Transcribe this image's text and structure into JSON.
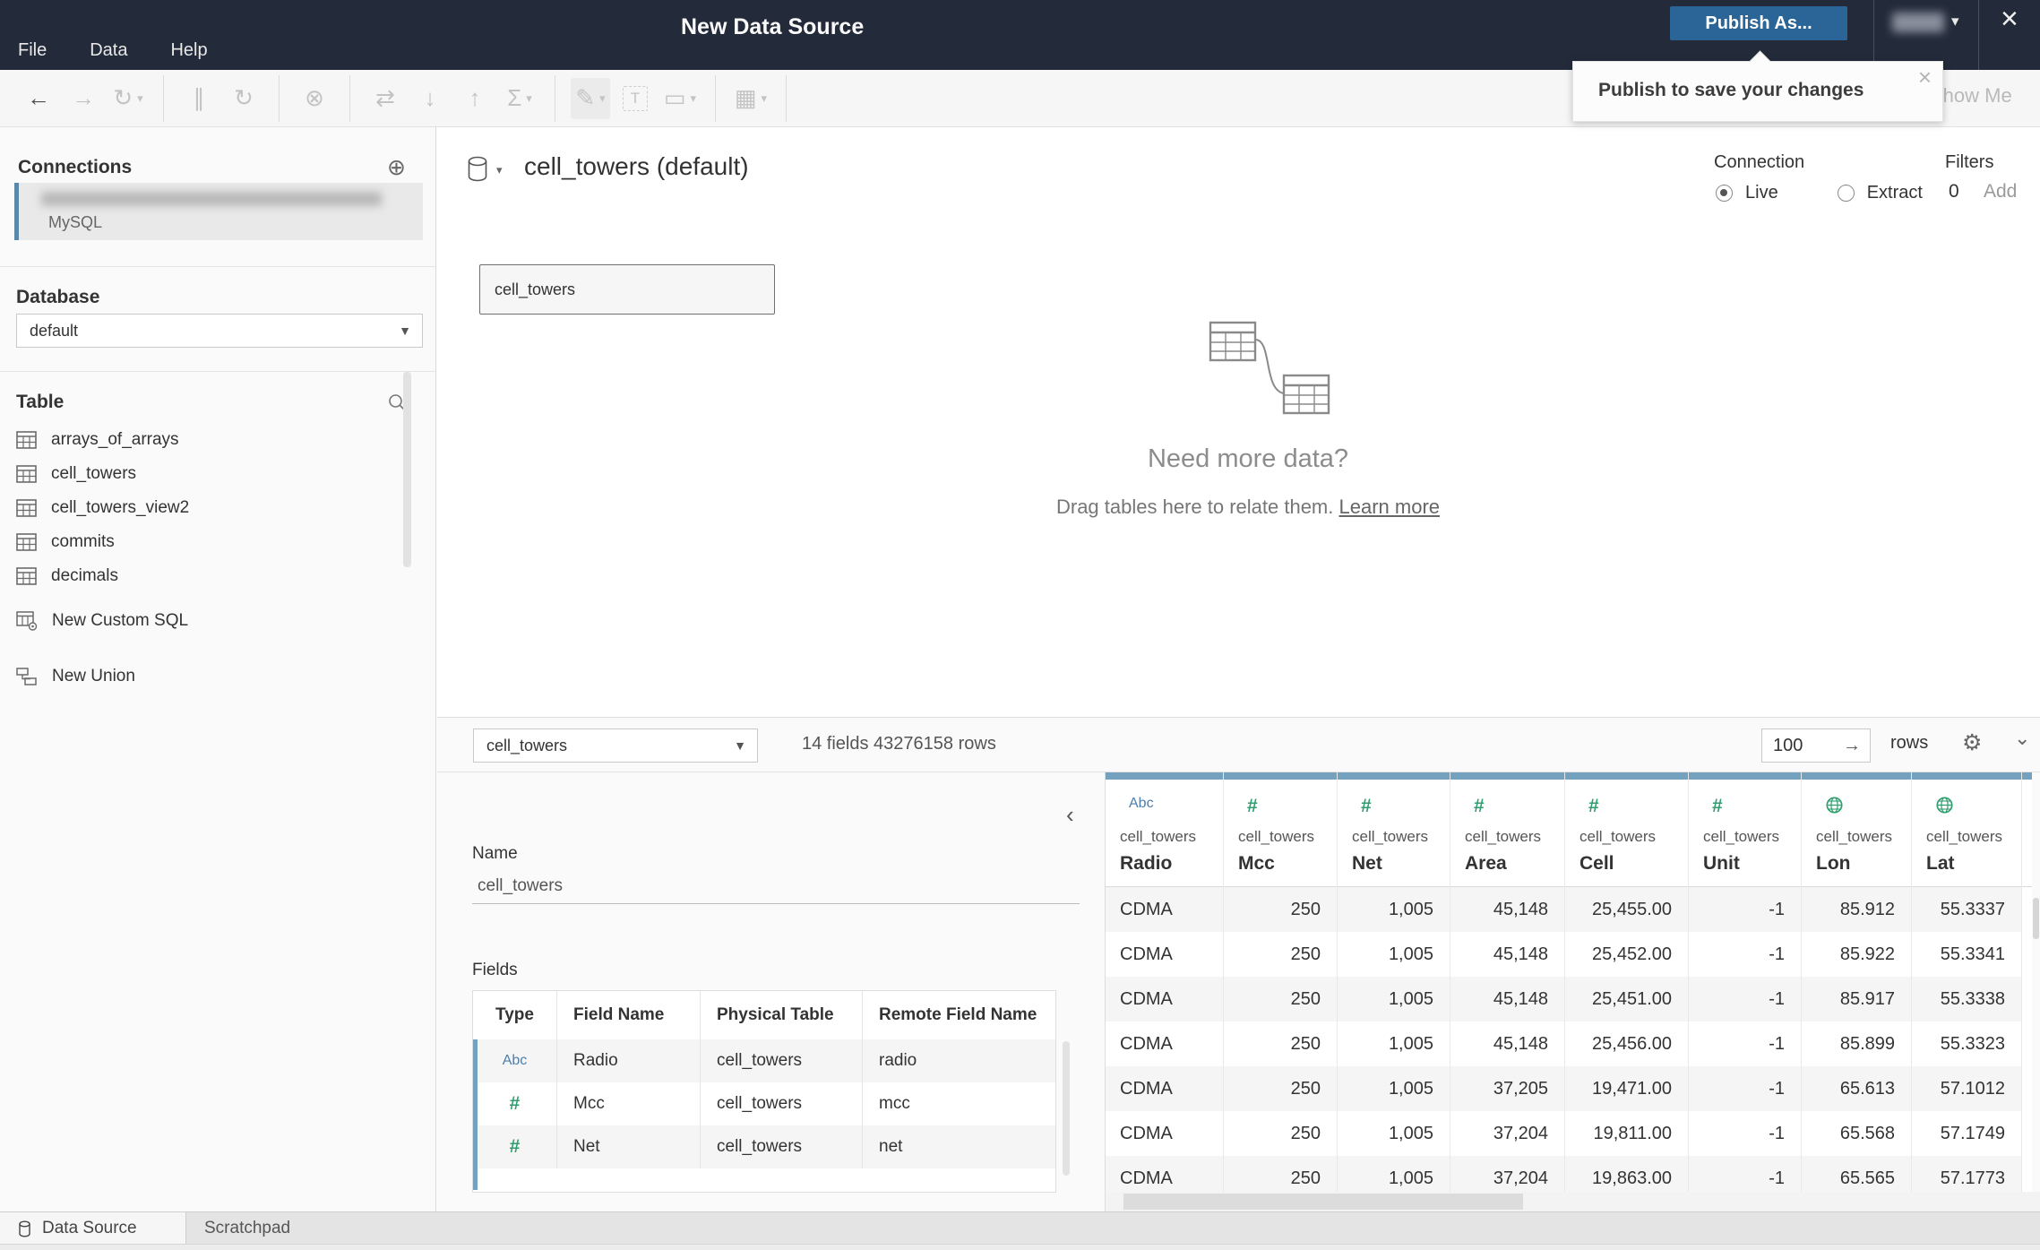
{
  "glyphs": {
    "caret_down": "▾",
    "chevron_down": "⌄",
    "chevron_left": "‹",
    "close": "×",
    "plus_circle": "⊕",
    "gear": "⚙",
    "arrow_right": "→",
    "abc": "Abc",
    "number_sign": "#"
  },
  "titlebar": {
    "menus": [
      "File",
      "Data",
      "Help"
    ],
    "title": "New Data Source",
    "publish_label": "Publish As...",
    "close_glyph": "×"
  },
  "tooltip": {
    "text": "Publish to save your changes",
    "close_glyph": "×"
  },
  "show_me_label": "Show Me",
  "toolbar": {
    "items": [
      {
        "name": "undo",
        "glyph": "←",
        "dark": true
      },
      {
        "name": "redo",
        "glyph": "→"
      },
      {
        "name": "replay",
        "glyph": "↻",
        "caret": true
      },
      {
        "name": "separator"
      },
      {
        "name": "pause-auto-updates",
        "glyph": "∥"
      },
      {
        "name": "refresh-data-source",
        "glyph": "↻"
      },
      {
        "name": "separator"
      },
      {
        "name": "clear-sheet",
        "glyph": "⊗"
      },
      {
        "name": "separator"
      },
      {
        "name": "swap-rows-and-columns",
        "glyph": "⇄"
      },
      {
        "name": "sort-ascending",
        "glyph": "↓"
      },
      {
        "name": "sort-descending",
        "glyph": "↑"
      },
      {
        "name": "totals",
        "glyph": "Σ",
        "caret": true
      },
      {
        "name": "separator"
      },
      {
        "name": "highlight",
        "glyph": "✎",
        "caret": true,
        "active": true
      },
      {
        "name": "text-label",
        "glyph": "T",
        "boxed": true
      },
      {
        "name": "fit",
        "glyph": "▭",
        "caret": true
      },
      {
        "name": "separator"
      },
      {
        "name": "show-me-mini",
        "glyph": "▦",
        "caret": true
      },
      {
        "name": "separator"
      }
    ]
  },
  "sidebar": {
    "connections_title": "Connections",
    "connection_subtitle": "MySQL",
    "database_label": "Database",
    "database_value": "default",
    "table_label": "Table",
    "tables": [
      "arrays_of_arrays",
      "cell_towers",
      "cell_towers_view2",
      "commits",
      "decimals"
    ],
    "actions": [
      "New Custom SQL",
      "New Union"
    ]
  },
  "canvas": {
    "datasource_title": "cell_towers (default)",
    "connection_label": "Connection",
    "live_label": "Live",
    "extract_label": "Extract",
    "filters_label": "Filters",
    "filters_count": "0",
    "filters_add_label": "Add",
    "table_node_label": "cell_towers",
    "empty_title": "Need more data?",
    "empty_subtitle": "Drag tables here to relate them.",
    "empty_link": "Learn more"
  },
  "gridbar": {
    "table_select_value": "cell_towers",
    "summary": "14 fields 43276158 rows",
    "row_count_value": "100",
    "rows_label": "rows"
  },
  "metadata": {
    "name_label": "Name",
    "name_value": "cell_towers",
    "fields_label": "Fields",
    "columns": [
      "Type",
      "Field Name",
      "Physical Table",
      "Remote Field Name"
    ],
    "rows": [
      {
        "type": "string",
        "field": "Radio",
        "table": "cell_towers",
        "remote": "radio"
      },
      {
        "type": "number",
        "field": "Mcc",
        "table": "cell_towers",
        "remote": "mcc"
      },
      {
        "type": "number",
        "field": "Net",
        "table": "cell_towers",
        "remote": "net"
      }
    ]
  },
  "grid": {
    "columns": [
      {
        "type": "string",
        "source": "cell_towers",
        "name": "Radio"
      },
      {
        "type": "number",
        "source": "cell_towers",
        "name": "Mcc"
      },
      {
        "type": "number",
        "source": "cell_towers",
        "name": "Net"
      },
      {
        "type": "number",
        "source": "cell_towers",
        "name": "Area"
      },
      {
        "type": "number",
        "source": "cell_towers",
        "name": "Cell"
      },
      {
        "type": "number",
        "source": "cell_towers",
        "name": "Unit"
      },
      {
        "type": "geo",
        "source": "cell_towers",
        "name": "Lon"
      },
      {
        "type": "geo",
        "source": "cell_towers",
        "name": "Lat"
      }
    ],
    "rows": [
      [
        "CDMA",
        "250",
        "1,005",
        "45,148",
        "25,455.00",
        "-1",
        "85.912",
        "55.3337"
      ],
      [
        "CDMA",
        "250",
        "1,005",
        "45,148",
        "25,452.00",
        "-1",
        "85.922",
        "55.3341"
      ],
      [
        "CDMA",
        "250",
        "1,005",
        "45,148",
        "25,451.00",
        "-1",
        "85.917",
        "55.3338"
      ],
      [
        "CDMA",
        "250",
        "1,005",
        "45,148",
        "25,456.00",
        "-1",
        "85.899",
        "55.3323"
      ],
      [
        "CDMA",
        "250",
        "1,005",
        "37,205",
        "19,471.00",
        "-1",
        "65.613",
        "57.1012"
      ],
      [
        "CDMA",
        "250",
        "1,005",
        "37,204",
        "19,811.00",
        "-1",
        "65.568",
        "57.1749"
      ],
      [
        "CDMA",
        "250",
        "1,005",
        "37,204",
        "19,863.00",
        "-1",
        "65.565",
        "57.1773"
      ]
    ]
  },
  "statusbar": {
    "tabs": [
      "Data Source",
      "Scratchpad"
    ]
  }
}
